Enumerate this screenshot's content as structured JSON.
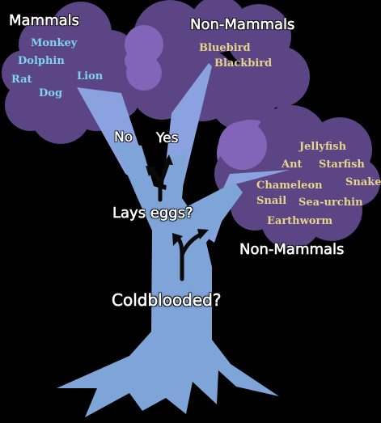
{
  "colors": {
    "background": "#000000",
    "trunk": "#7ea4d8",
    "canopy": "#5b4584",
    "canopy_highlight": "#8264b8",
    "branch": "#8aa2e0",
    "arrow": "#0a0a0a",
    "mammal_text": "#7fd3ee",
    "nonmammal_text": "#e6d48a",
    "label_text": "#ffffff"
  },
  "groups": {
    "mammals_title": "Mammals",
    "nonmammals_top_title": "Non-Mammals",
    "nonmammals_bottom_title": "Non-Mammals"
  },
  "mammals": [
    "Monkey",
    "Dolphin",
    "Rat",
    "Lion",
    "Dog"
  ],
  "nonmammals_birds": [
    "Bluebird",
    "Blackbird"
  ],
  "nonmammals_coldblooded": [
    "Jellyfish",
    "Ant",
    "Starfish",
    "Snake",
    "Chameleon",
    "Snail",
    "Sea-urchin",
    "Earthworm"
  ],
  "questions": {
    "coldblooded": "Coldblooded?",
    "lays_eggs": "Lays eggs?"
  },
  "answers": {
    "no": "No",
    "yes": "Yes"
  }
}
